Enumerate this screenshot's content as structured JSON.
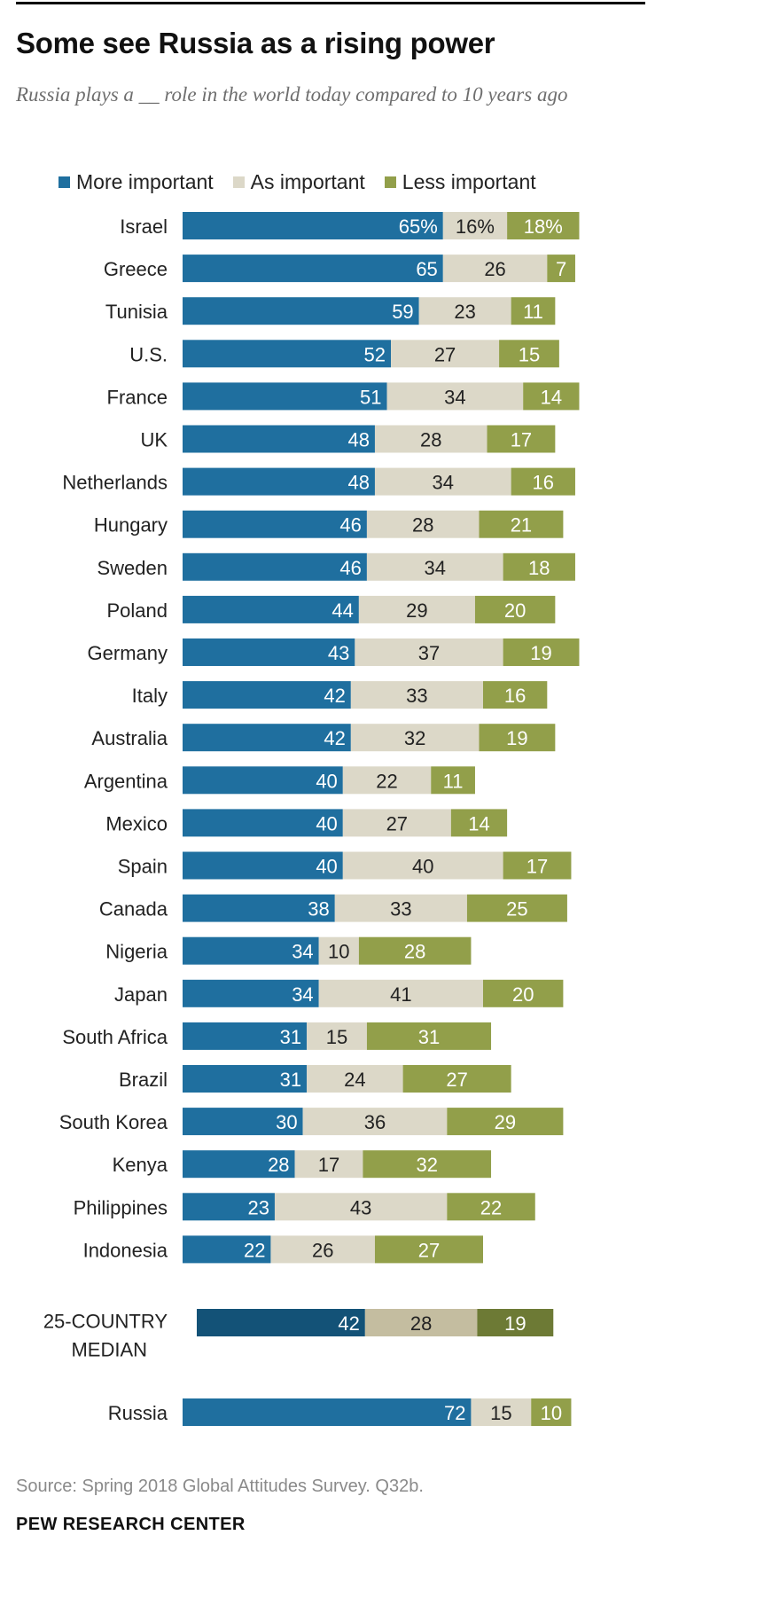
{
  "header": {
    "title": "Some see Russia as a rising power",
    "subtitle": "Russia plays a __ role in the world today compared to 10 years ago"
  },
  "legend": [
    {
      "label": "More important",
      "color": "#1f6f9f"
    },
    {
      "label": "As important",
      "color": "#dcd8c8"
    },
    {
      "label": "Less important",
      "color": "#929f4a"
    }
  ],
  "colors": {
    "more": "#1f6f9f",
    "as": "#dcd8c8",
    "less": "#929f4a",
    "median_more": "#135277",
    "median_as": "#c4bda0",
    "median_less": "#6d7a35"
  },
  "chart_data": {
    "type": "bar",
    "orientation": "horizontal",
    "stacked": true,
    "title": "Some see Russia as a rising power",
    "subtitle": "Russia plays a __ role in the world today compared to 10 years ago",
    "series_names": [
      "More important",
      "As important",
      "Less important"
    ],
    "categories": [
      "Israel",
      "Greece",
      "Tunisia",
      "U.S.",
      "France",
      "UK",
      "Netherlands",
      "Hungary",
      "Sweden",
      "Poland",
      "Germany",
      "Italy",
      "Australia",
      "Argentina",
      "Mexico",
      "Spain",
      "Canada",
      "Nigeria",
      "Japan",
      "South Africa",
      "Brazil",
      "South Korea",
      "Kenya",
      "Philippines",
      "Indonesia"
    ],
    "series": [
      {
        "name": "More important",
        "values": [
          65,
          65,
          59,
          52,
          51,
          48,
          48,
          46,
          46,
          44,
          43,
          42,
          42,
          40,
          40,
          40,
          38,
          34,
          34,
          31,
          31,
          30,
          28,
          23,
          22
        ]
      },
      {
        "name": "As important",
        "values": [
          16,
          26,
          23,
          27,
          34,
          28,
          34,
          28,
          34,
          29,
          37,
          33,
          32,
          22,
          27,
          40,
          33,
          10,
          41,
          15,
          24,
          36,
          17,
          43,
          26
        ]
      },
      {
        "name": "Less important",
        "values": [
          18,
          7,
          11,
          15,
          14,
          17,
          16,
          21,
          18,
          20,
          19,
          16,
          19,
          11,
          14,
          17,
          25,
          28,
          20,
          31,
          27,
          29,
          32,
          22,
          27
        ]
      }
    ],
    "first_row_suffix": "%",
    "median": {
      "label_line1": "25-COUNTRY",
      "label_line2": "MEDIAN",
      "values": [
        42,
        28,
        19
      ]
    },
    "russia": {
      "label": "Russia",
      "values": [
        72,
        15,
        10
      ]
    },
    "xlim": [
      0,
      100
    ]
  },
  "footer": {
    "source": "Source: Spring 2018 Global Attitudes Survey. Q32b.",
    "brand": "PEW RESEARCH CENTER"
  }
}
